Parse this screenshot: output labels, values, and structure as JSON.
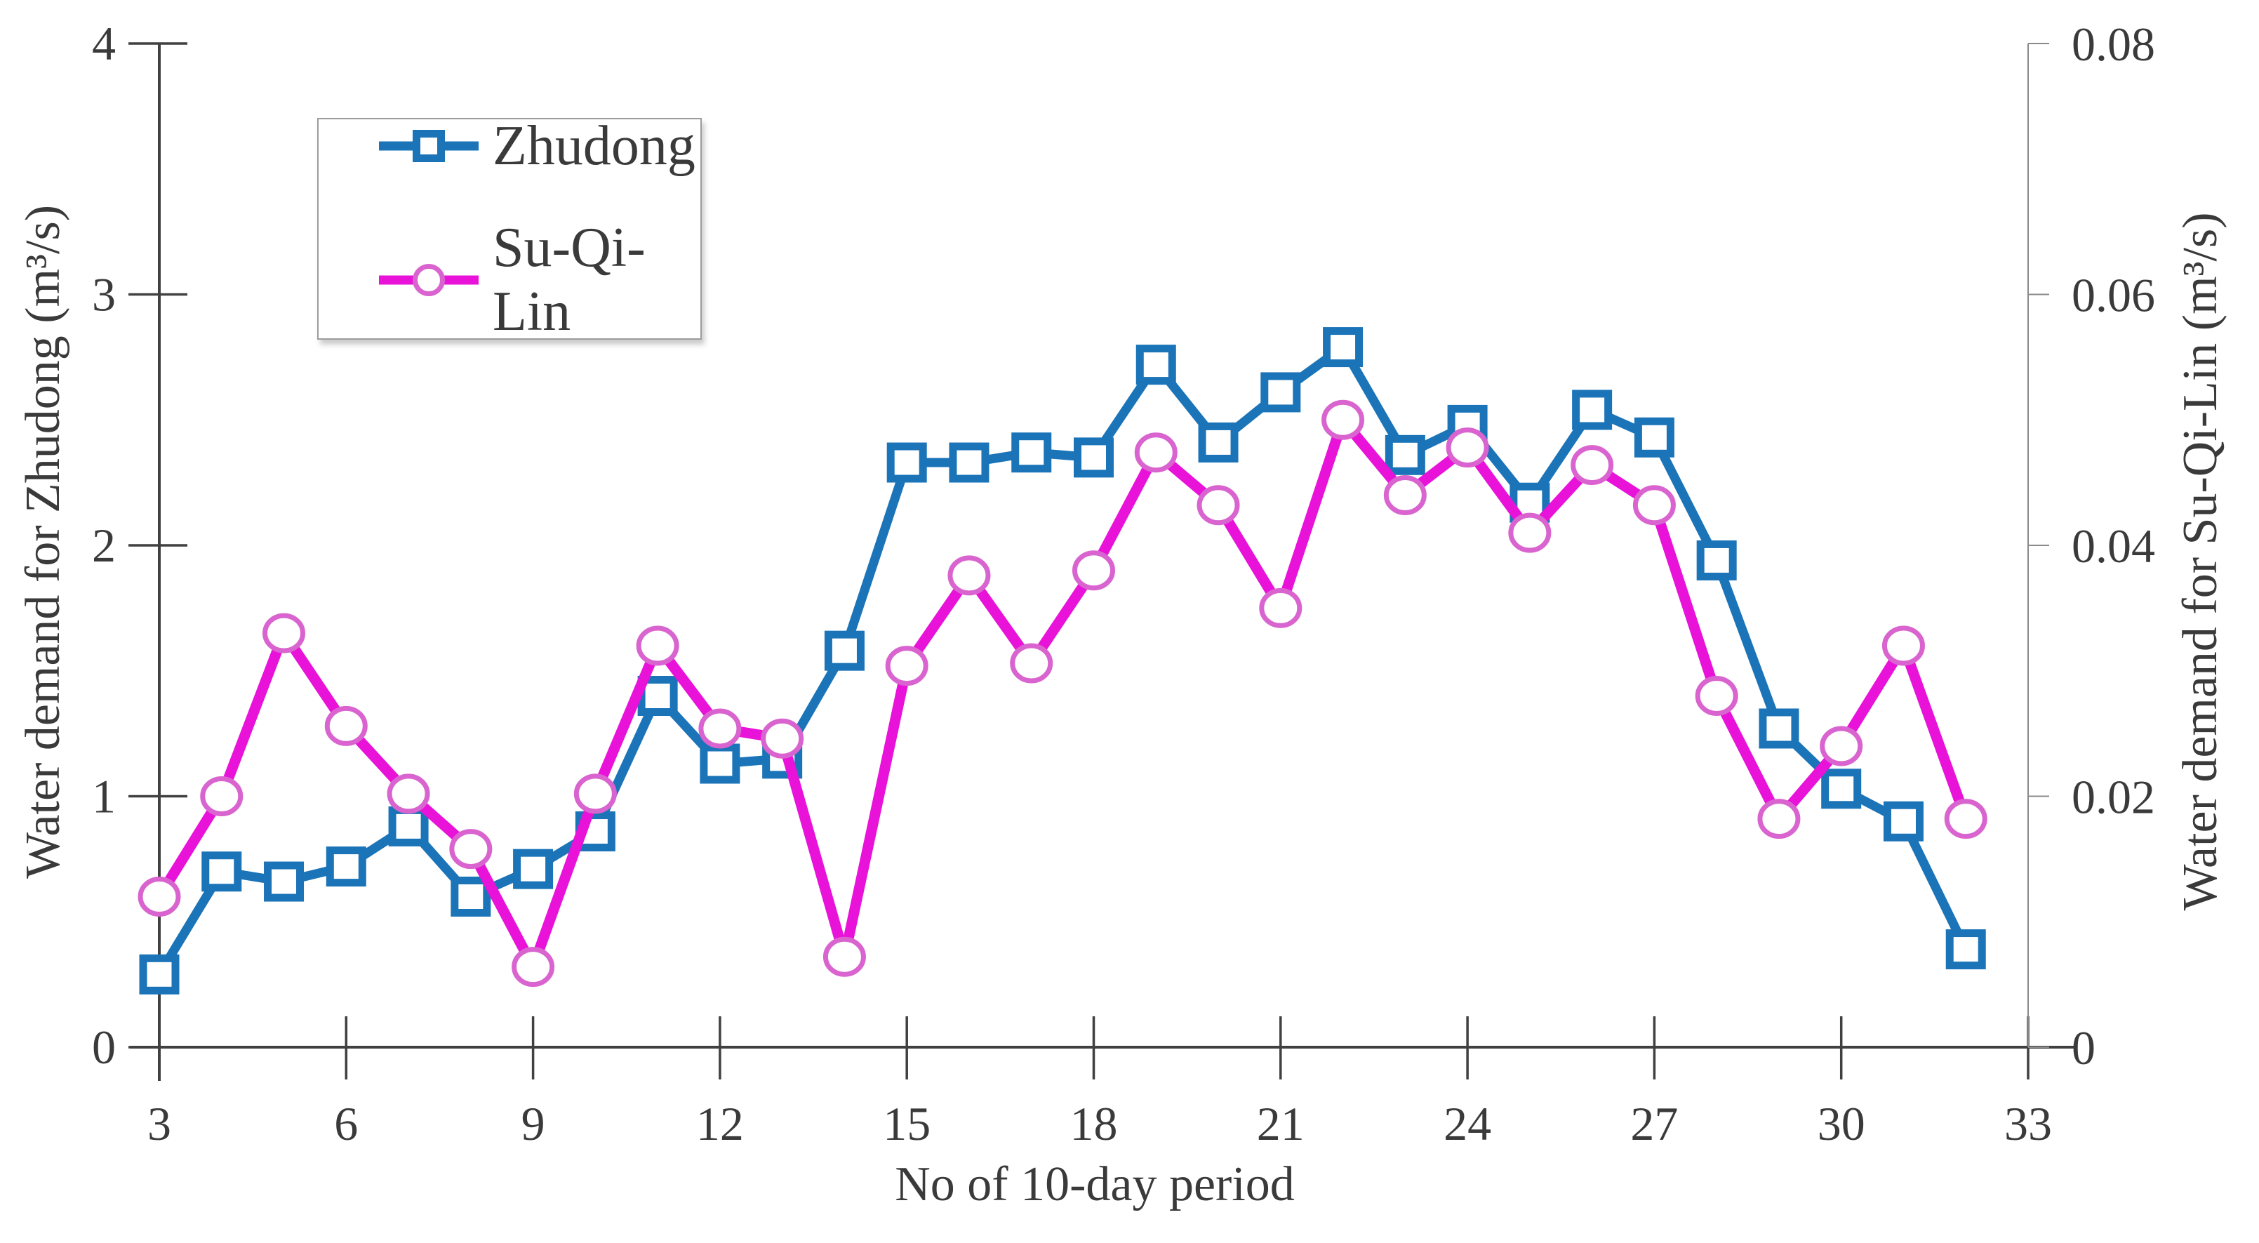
{
  "chart_data": {
    "type": "line",
    "title": "",
    "xlabel": "No of 10-day period",
    "x_range": [
      3,
      33
    ],
    "x_ticks": [
      3,
      6,
      9,
      12,
      15,
      18,
      21,
      24,
      27,
      30,
      33
    ],
    "left_axis": {
      "label": "Water demand for Zhudong (m³/s)",
      "range": [
        0,
        4
      ],
      "ticks": [
        "0",
        "1",
        "2",
        "3",
        "4"
      ]
    },
    "right_axis": {
      "label": "Water demand for Su-Qi-Lin (m³/s)",
      "range": [
        0,
        0.08
      ],
      "ticks": [
        "0",
        "0.02",
        "0.04",
        "0.06",
        "0.08"
      ]
    },
    "grid": false,
    "legend": {
      "position": "top-left"
    },
    "x": [
      3,
      4,
      5,
      6,
      7,
      8,
      9,
      10,
      11,
      12,
      13,
      14,
      15,
      16,
      17,
      18,
      19,
      20,
      21,
      22,
      23,
      24,
      25,
      26,
      27,
      28,
      29,
      30,
      31,
      32
    ],
    "series": [
      {
        "name": "Zhudong",
        "axis": "left",
        "color": "#1b74b8",
        "marker": "square",
        "marker_outline": "#1b74b8",
        "values": [
          0.29,
          0.7,
          0.66,
          0.72,
          0.88,
          0.6,
          0.71,
          0.86,
          1.4,
          1.13,
          1.15,
          1.58,
          2.33,
          2.33,
          2.37,
          2.35,
          2.72,
          2.41,
          2.61,
          2.79,
          2.36,
          2.48,
          2.17,
          2.54,
          2.43,
          1.94,
          1.27,
          1.03,
          0.9,
          0.39
        ]
      },
      {
        "name": "Su-Qi-Lin",
        "axis": "right",
        "color": "#e812d9",
        "marker": "circle",
        "marker_outline": "#d964cf",
        "values": [
          0.012,
          0.02,
          0.033,
          0.0256,
          0.0202,
          0.0158,
          0.0064,
          0.0202,
          0.032,
          0.0254,
          0.0246,
          0.0072,
          0.0304,
          0.0376,
          0.0306,
          0.038,
          0.0474,
          0.0432,
          0.035,
          0.05,
          0.044,
          0.0478,
          0.041,
          0.0464,
          0.0432,
          0.028,
          0.0182,
          0.024,
          0.032,
          0.0182
        ]
      }
    ],
    "colors": {
      "axis_line": "#404040",
      "right_axis_line": "#8a8a8a",
      "text": "#3a3a3a"
    }
  }
}
